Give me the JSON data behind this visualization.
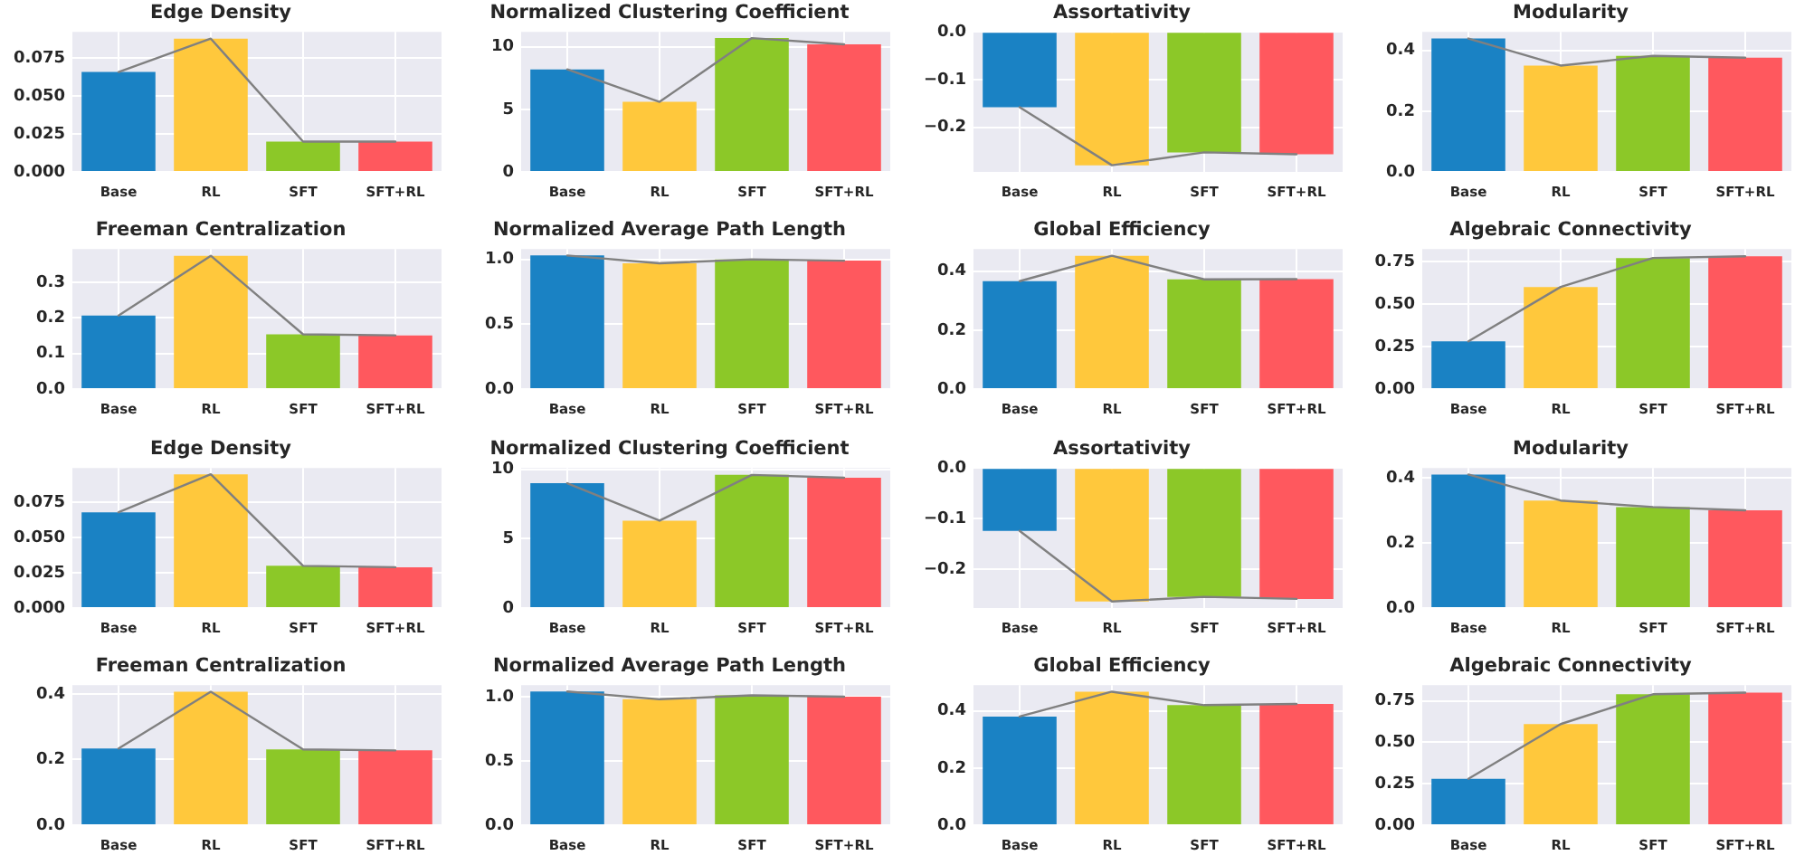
{
  "chart_data": [
    {
      "type": "bar",
      "title": "Edge Density",
      "categories": [
        "Base",
        "RL",
        "SFT",
        "SFT+RL"
      ],
      "series": [
        {
          "colors": [
            "#1a82c4",
            "#ffc83c",
            "#8cc828",
            "#ff585e"
          ],
          "values": [
            0.066,
            0.088,
            0.02,
            0.02
          ]
        },
        {
          "type": "line",
          "color": "#808080",
          "values": [
            0.066,
            0.088,
            0.02,
            0.02
          ]
        }
      ],
      "ylim": [
        0,
        0.0925
      ],
      "yticks": [
        {
          "value": 0,
          "label": "0.000"
        },
        0.025,
        {
          "value": 0.05,
          "label": "0.050"
        },
        0.075
      ],
      "grid": true
    },
    {
      "type": "bar",
      "title": "Normalized Clustering Coefficient",
      "categories": [
        "Base",
        "RL",
        "SFT",
        "SFT+RL"
      ],
      "series": [
        {
          "colors": [
            "#1a82c4",
            "#ffc83c",
            "#8cc828",
            "#ff585e"
          ],
          "values": [
            8.2,
            5.6,
            10.7,
            10.2
          ]
        },
        {
          "type": "line",
          "color": "#808080",
          "values": [
            8.2,
            5.6,
            10.7,
            10.2
          ]
        }
      ],
      "ylim": [
        0,
        11.2
      ],
      "yticks": [
        0,
        5,
        10
      ],
      "grid": true
    },
    {
      "type": "bar",
      "title": "Assortativity",
      "categories": [
        "Base",
        "RL",
        "SFT",
        "SFT+RL"
      ],
      "series": [
        {
          "colors": [
            "#1a82c4",
            "#ffc83c",
            "#8cc828",
            "#ff585e"
          ],
          "values": [
            -0.158,
            -0.28,
            -0.253,
            -0.257
          ]
        },
        {
          "type": "line",
          "color": "#808080",
          "values": [
            -0.158,
            -0.28,
            -0.253,
            -0.257
          ]
        }
      ],
      "ylim": [
        -0.294,
        0
      ],
      "yticks": [
        {
          "value": -0.2,
          "label": "−0.2"
        },
        {
          "value": -0.1,
          "label": "−0.1"
        },
        {
          "value": 0,
          "label": "0.0"
        }
      ],
      "grid": true
    },
    {
      "type": "bar",
      "title": "Modularity",
      "categories": [
        "Base",
        "RL",
        "SFT",
        "SFT+RL"
      ],
      "series": [
        {
          "colors": [
            "#1a82c4",
            "#ffc83c",
            "#8cc828",
            "#ff585e"
          ],
          "values": [
            0.439,
            0.35,
            0.382,
            0.376
          ]
        },
        {
          "type": "line",
          "color": "#808080",
          "values": [
            0.439,
            0.35,
            0.382,
            0.376
          ]
        }
      ],
      "ylim": [
        0,
        0.461
      ],
      "yticks": [
        {
          "value": 0,
          "label": "0.0"
        },
        0.2,
        0.4
      ],
      "grid": true
    },
    {
      "type": "bar",
      "title": "Freeman Centralization",
      "categories": [
        "Base",
        "RL",
        "SFT",
        "SFT+RL"
      ],
      "series": [
        {
          "colors": [
            "#1a82c4",
            "#ffc83c",
            "#8cc828",
            "#ff585e"
          ],
          "values": [
            0.207,
            0.375,
            0.154,
            0.151
          ]
        },
        {
          "type": "line",
          "color": "#808080",
          "values": [
            0.207,
            0.375,
            0.154,
            0.151
          ]
        }
      ],
      "ylim": [
        0,
        0.394
      ],
      "yticks": [
        {
          "value": 0,
          "label": "0.0"
        },
        0.1,
        0.2,
        0.3
      ],
      "grid": true
    },
    {
      "type": "bar",
      "title": "Normalized Average Path Length",
      "categories": [
        "Base",
        "RL",
        "SFT",
        "SFT+RL"
      ],
      "series": [
        {
          "colors": [
            "#1a82c4",
            "#ffc83c",
            "#8cc828",
            "#ff585e"
          ],
          "values": [
            1.03,
            0.97,
            1.0,
            0.99
          ]
        },
        {
          "type": "line",
          "color": "#808080",
          "values": [
            1.03,
            0.97,
            1.0,
            0.99
          ]
        }
      ],
      "ylim": [
        0,
        1.08
      ],
      "yticks": [
        {
          "value": 0,
          "label": "0.0"
        },
        0.5,
        {
          "value": 1,
          "label": "1.0"
        }
      ],
      "grid": true
    },
    {
      "type": "bar",
      "title": "Global Efficiency",
      "categories": [
        "Base",
        "RL",
        "SFT",
        "SFT+RL"
      ],
      "series": [
        {
          "colors": [
            "#1a82c4",
            "#ffc83c",
            "#8cc828",
            "#ff585e"
          ],
          "values": [
            0.366,
            0.452,
            0.372,
            0.373
          ]
        },
        {
          "type": "line",
          "color": "#808080",
          "values": [
            0.366,
            0.452,
            0.372,
            0.373
          ]
        }
      ],
      "ylim": [
        0,
        0.475
      ],
      "yticks": [
        {
          "value": 0,
          "label": "0.0"
        },
        0.2,
        0.4
      ],
      "grid": true
    },
    {
      "type": "bar",
      "title": "Algebraic Connectivity",
      "categories": [
        "Base",
        "RL",
        "SFT",
        "SFT+RL"
      ],
      "series": [
        {
          "colors": [
            "#1a82c4",
            "#ffc83c",
            "#8cc828",
            "#ff585e"
          ],
          "values": [
            0.28,
            0.6,
            0.77,
            0.78
          ]
        },
        {
          "type": "line",
          "color": "#808080",
          "values": [
            0.28,
            0.6,
            0.77,
            0.78
          ]
        }
      ],
      "ylim": [
        0,
        0.823
      ],
      "yticks": [
        {
          "value": 0,
          "label": "0.00"
        },
        0.25,
        {
          "value": 0.5,
          "label": "0.50"
        },
        0.75
      ],
      "grid": true
    },
    {
      "type": "bar",
      "title": "Edge Density",
      "categories": [
        "Base",
        "RL",
        "SFT",
        "SFT+RL"
      ],
      "series": [
        {
          "colors": [
            "#1a82c4",
            "#ffc83c",
            "#8cc828",
            "#ff585e"
          ],
          "values": [
            0.068,
            0.095,
            0.03,
            0.029
          ]
        },
        {
          "type": "line",
          "color": "#808080",
          "values": [
            0.068,
            0.095,
            0.03,
            0.029
          ]
        }
      ],
      "ylim": [
        0,
        0.0995
      ],
      "yticks": [
        {
          "value": 0,
          "label": "0.000"
        },
        0.025,
        {
          "value": 0.05,
          "label": "0.050"
        },
        0.075
      ],
      "grid": true
    },
    {
      "type": "bar",
      "title": "Normalized Clustering Coefficient",
      "categories": [
        "Base",
        "RL",
        "SFT",
        "SFT+RL"
      ],
      "series": [
        {
          "colors": [
            "#1a82c4",
            "#ffc83c",
            "#8cc828",
            "#ff585e"
          ],
          "values": [
            9.0,
            6.3,
            9.6,
            9.4
          ]
        },
        {
          "type": "line",
          "color": "#808080",
          "values": [
            9.0,
            6.3,
            9.6,
            9.4
          ]
        }
      ],
      "ylim": [
        0,
        10.1
      ],
      "yticks": [
        0,
        5,
        10
      ],
      "grid": true
    },
    {
      "type": "bar",
      "title": "Assortativity",
      "categories": [
        "Base",
        "RL",
        "SFT",
        "SFT+RL"
      ],
      "series": [
        {
          "colors": [
            "#1a82c4",
            "#ffc83c",
            "#8cc828",
            "#ff585e"
          ],
          "values": [
            -0.124,
            -0.263,
            -0.254,
            -0.258
          ]
        },
        {
          "type": "line",
          "color": "#808080",
          "values": [
            -0.124,
            -0.263,
            -0.254,
            -0.258
          ]
        }
      ],
      "ylim": [
        -0.276,
        0
      ],
      "yticks": [
        {
          "value": -0.2,
          "label": "−0.2"
        },
        {
          "value": -0.1,
          "label": "−0.1"
        },
        {
          "value": 0,
          "label": "0.0"
        }
      ],
      "grid": true
    },
    {
      "type": "bar",
      "title": "Modularity",
      "categories": [
        "Base",
        "RL",
        "SFT",
        "SFT+RL"
      ],
      "series": [
        {
          "colors": [
            "#1a82c4",
            "#ffc83c",
            "#8cc828",
            "#ff585e"
          ],
          "values": [
            0.41,
            0.33,
            0.31,
            0.3
          ]
        },
        {
          "type": "line",
          "color": "#808080",
          "values": [
            0.41,
            0.33,
            0.31,
            0.3
          ]
        }
      ],
      "ylim": [
        0,
        0.43
      ],
      "yticks": [
        {
          "value": 0,
          "label": "0.0"
        },
        0.2,
        0.4
      ],
      "grid": true
    },
    {
      "type": "bar",
      "title": "Freeman Centralization",
      "categories": [
        "Base",
        "RL",
        "SFT",
        "SFT+RL"
      ],
      "series": [
        {
          "colors": [
            "#1a82c4",
            "#ffc83c",
            "#8cc828",
            "#ff585e"
          ],
          "values": [
            0.234,
            0.407,
            0.231,
            0.228
          ]
        },
        {
          "type": "line",
          "color": "#808080",
          "values": [
            0.234,
            0.407,
            0.231,
            0.228
          ]
        }
      ],
      "ylim": [
        0,
        0.427
      ],
      "yticks": [
        {
          "value": 0,
          "label": "0.0"
        },
        0.2,
        0.4
      ],
      "grid": true
    },
    {
      "type": "bar",
      "title": "Normalized Average Path Length",
      "categories": [
        "Base",
        "RL",
        "SFT",
        "SFT+RL"
      ],
      "series": [
        {
          "colors": [
            "#1a82c4",
            "#ffc83c",
            "#8cc828",
            "#ff585e"
          ],
          "values": [
            1.04,
            0.98,
            1.01,
            1.0
          ]
        },
        {
          "type": "line",
          "color": "#808080",
          "values": [
            1.04,
            0.98,
            1.01,
            1.0
          ]
        }
      ],
      "ylim": [
        0,
        1.09
      ],
      "yticks": [
        {
          "value": 0,
          "label": "0.0"
        },
        0.5,
        {
          "value": 1,
          "label": "1.0"
        }
      ],
      "grid": true
    },
    {
      "type": "bar",
      "title": "Global Efficiency",
      "categories": [
        "Base",
        "RL",
        "SFT",
        "SFT+RL"
      ],
      "series": [
        {
          "colors": [
            "#1a82c4",
            "#ffc83c",
            "#8cc828",
            "#ff585e"
          ],
          "values": [
            0.38,
            0.467,
            0.42,
            0.424
          ]
        },
        {
          "type": "line",
          "color": "#808080",
          "values": [
            0.38,
            0.467,
            0.42,
            0.424
          ]
        }
      ],
      "ylim": [
        0,
        0.49
      ],
      "yticks": [
        {
          "value": 0,
          "label": "0.0"
        },
        0.2,
        0.4
      ],
      "grid": true
    },
    {
      "type": "bar",
      "title": "Algebraic Connectivity",
      "categories": [
        "Base",
        "RL",
        "SFT",
        "SFT+RL"
      ],
      "series": [
        {
          "colors": [
            "#1a82c4",
            "#ffc83c",
            "#8cc828",
            "#ff585e"
          ],
          "values": [
            0.28,
            0.61,
            0.79,
            0.8
          ]
        },
        {
          "type": "line",
          "color": "#808080",
          "values": [
            0.28,
            0.61,
            0.79,
            0.8
          ]
        }
      ],
      "ylim": [
        0,
        0.845
      ],
      "yticks": [
        {
          "value": 0,
          "label": "0.00"
        },
        0.25,
        {
          "value": 0.5,
          "label": "0.50"
        },
        0.75
      ],
      "grid": true
    }
  ]
}
